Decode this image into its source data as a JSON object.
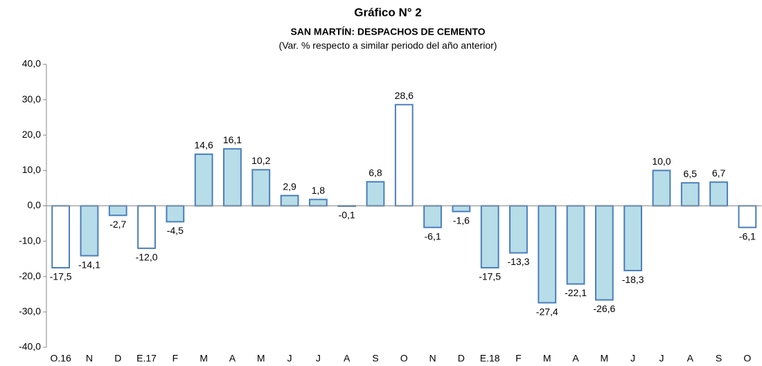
{
  "chart_data": {
    "type": "bar",
    "title": "Gráfico N° 2",
    "subtitle": "SAN MARTÍN: DESPACHOS DE CEMENTO",
    "note": "(Var. % respecto a similar periodo del año anterior)",
    "categories": [
      "O.16",
      "N",
      "D",
      "E.17",
      "F",
      "M",
      "A",
      "M",
      "J",
      "J",
      "A",
      "S",
      "O",
      "N",
      "D",
      "E.18",
      "F",
      "M",
      "A",
      "M",
      "J",
      "J",
      "A",
      "S",
      "O"
    ],
    "values": [
      -17.5,
      -14.1,
      -2.7,
      -12.0,
      -4.5,
      14.6,
      16.1,
      10.2,
      2.9,
      1.8,
      -0.1,
      6.8,
      28.6,
      -6.1,
      -1.6,
      -17.5,
      -13.3,
      -27.4,
      -22.1,
      -26.6,
      -18.3,
      10.0,
      6.5,
      6.7,
      -6.1
    ],
    "value_labels": [
      "-17,5",
      "-14,1",
      "-2,7",
      "-12,0",
      "-4,5",
      "14,6",
      "16,1",
      "10,2",
      "2,9",
      "1,8",
      "-0,1",
      "6,8",
      "28,6",
      "-6,1",
      "-1,6",
      "-17,5",
      "-13,3",
      "-27,4",
      "-22,1",
      "-26,6",
      "-18,3",
      "10,0",
      "6,5",
      "6,7",
      "-6,1"
    ],
    "colors": [
      "#ffffff",
      "#b7dde8",
      "#b7dde8",
      "#ffffff",
      "#b7dde8",
      "#b7dde8",
      "#b7dde8",
      "#b7dde8",
      "#b7dde8",
      "#b7dde8",
      "#b7dde8",
      "#b7dde8",
      "#ffffff",
      "#b7dde8",
      "#b7dde8",
      "#b7dde8",
      "#b7dde8",
      "#b7dde8",
      "#b7dde8",
      "#b7dde8",
      "#b7dde8",
      "#b7dde8",
      "#b7dde8",
      "#b7dde8",
      "#ffffff"
    ],
    "border_color": "#4a7ebb",
    "ylim": [
      -40,
      40
    ],
    "yticks": [
      {
        "value": -40,
        "label": "-40,0"
      },
      {
        "value": -30,
        "label": "-30,0"
      },
      {
        "value": -20,
        "label": "-20,0"
      },
      {
        "value": -10,
        "label": "-10,0"
      },
      {
        "value": 0,
        "label": "0,0"
      },
      {
        "value": 10,
        "label": "10,0"
      },
      {
        "value": 20,
        "label": "20,0"
      },
      {
        "value": 30,
        "label": "30,0"
      },
      {
        "value": 40,
        "label": "40,0"
      }
    ]
  }
}
